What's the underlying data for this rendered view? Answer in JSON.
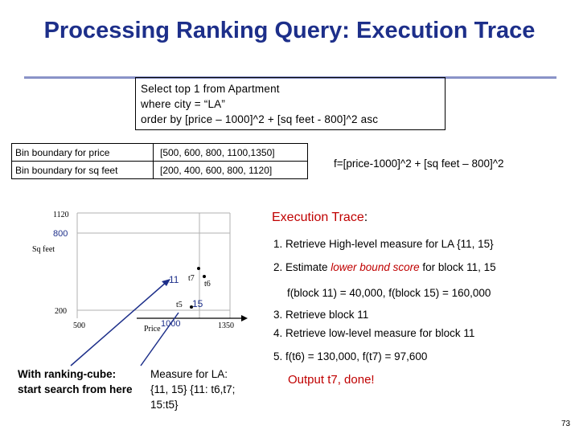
{
  "title": "Processing Ranking Query: Execution Trace",
  "query": [
    "Select top 1 from Apartment",
    "where city = “LA”",
    "order by [price – 1000]^2 + [sq feet - 800]^2 asc"
  ],
  "bins": [
    {
      "label": "Bin boundary for price",
      "values": "[500, 600, 800, 1100,1350]"
    },
    {
      "label": "Bin boundary for sq feet",
      "values": "[200, 400, 600, 800, 1120]"
    }
  ],
  "formula": "f=[price-1000]^2 + [sq feet – 800]^2",
  "chart": {
    "y_ticks": [
      "1120",
      "800",
      "200"
    ],
    "y_label": "Sq feet",
    "x_ticks": [
      "500",
      "1000",
      "1350"
    ],
    "x_label": "Price",
    "block_labels": [
      "11",
      "15"
    ],
    "points": [
      "t7",
      "t6",
      "t5"
    ]
  },
  "exec": {
    "title": "Execution Trace",
    "colon": ":",
    "step1": "1. Retrieve High-level measure for LA {11, 15}",
    "step2_pre": "2. Estimate ",
    "step2_em": "lower bound score",
    "step2_post": " for block 11, 15",
    "step2_detail": "f(block 11) = 40,000, f(block 15) = 160,000",
    "step3": "3. Retrieve block 11",
    "step4": "4. Retrieve low-level measure for block 11",
    "step5": "5. f(t6) = 130,000, f(t7) = 97,600"
  },
  "output": "Output t7, done!",
  "bottom_left": "With ranking-cube: start search from here",
  "bottom_mid": "Measure for LA: {11, 15} {11: t6,t7; 15:t5}",
  "page_number": "73",
  "colors": {
    "title": "#1d2f8a",
    "accent_red": "#c00000",
    "rule": "#8a93c8"
  }
}
